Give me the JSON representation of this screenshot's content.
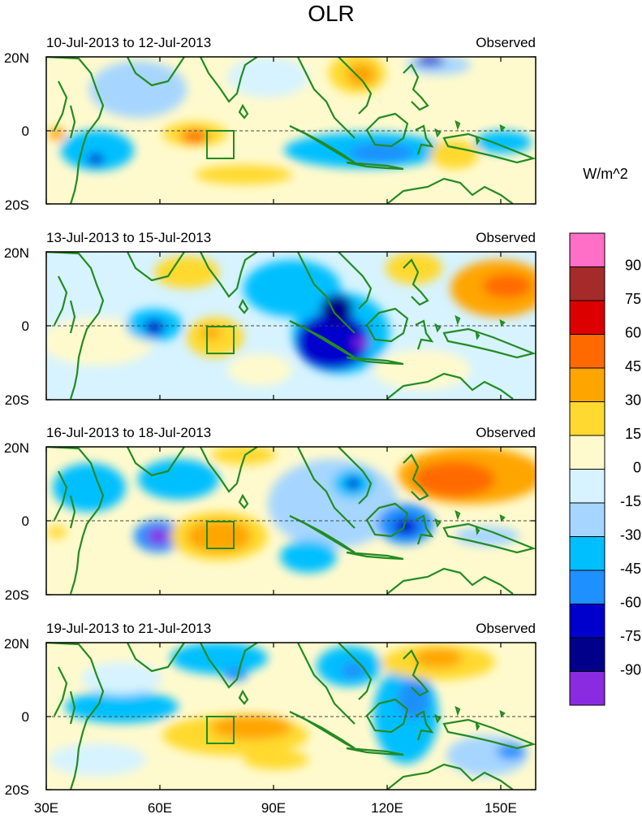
{
  "title": "OLR",
  "units_label": "W/m^2",
  "panel_tag": "Observed",
  "panels": [
    {
      "date_range": "10-Jul-2013 to 12-Jul-2013",
      "tag": "Observed"
    },
    {
      "date_range": "13-Jul-2013 to 15-Jul-2013",
      "tag": "Observed"
    },
    {
      "date_range": "16-Jul-2013 to 18-Jul-2013",
      "tag": "Observed"
    },
    {
      "date_range": "19-Jul-2013 to 21-Jul-2013",
      "tag": "Observed"
    }
  ],
  "lat_labels": [
    "20N",
    "0",
    "20S"
  ],
  "lon_labels": [
    "30E",
    "60E",
    "90E",
    "120E",
    "150E"
  ],
  "colorbar": {
    "labels": [
      "90",
      "75",
      "60",
      "45",
      "30",
      "15",
      "0",
      "-15",
      "-30",
      "-45",
      "-60",
      "-75",
      "-90"
    ],
    "colors": [
      "#ff6ec7",
      "#a52a2a",
      "#dd0000",
      "#ff6a00",
      "#ffa500",
      "#ffd92f",
      "#fffacd",
      "#d6f3ff",
      "#a6d6ff",
      "#00bfff",
      "#1e90ff",
      "#0000cd",
      "#00008b",
      "#8a2be2"
    ]
  },
  "colors": {
    "coast": "#238b23",
    "box": "#238b23",
    "equator": "#444444"
  }
}
